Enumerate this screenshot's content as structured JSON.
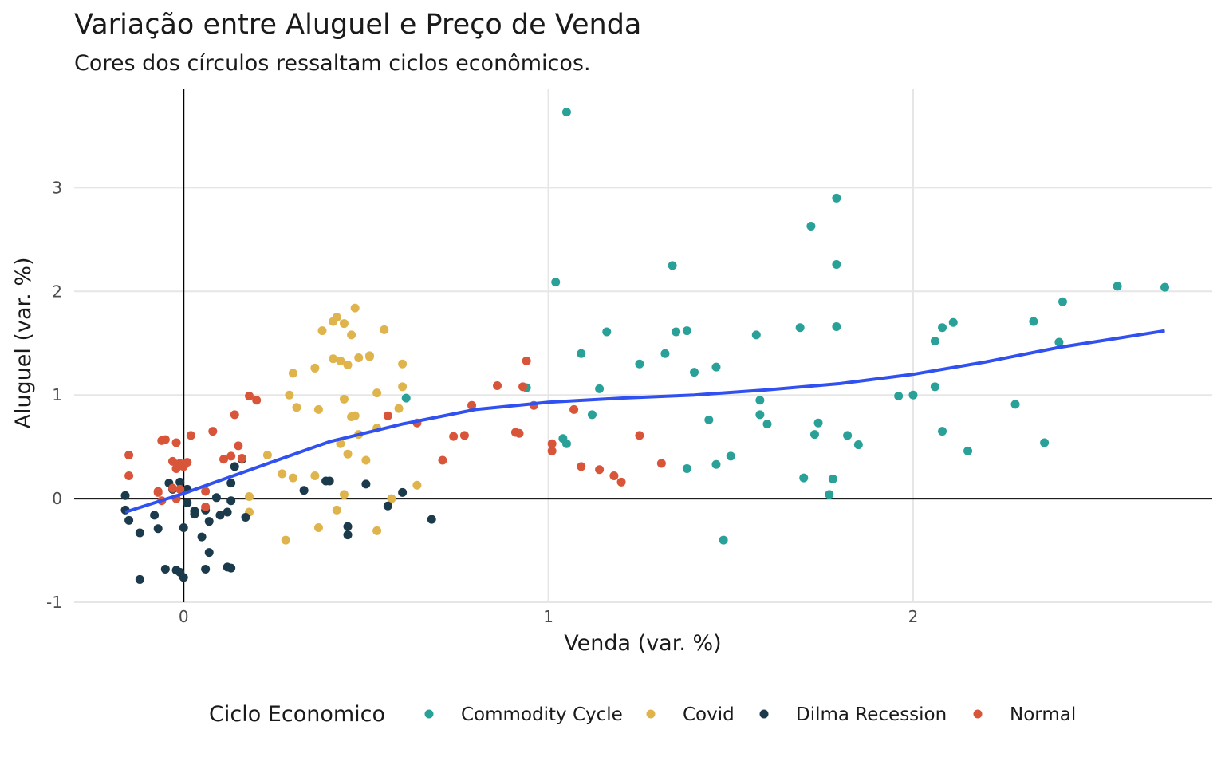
{
  "chart_data": {
    "type": "scatter",
    "title": "Variação entre Aluguel e Preço de Venda",
    "subtitle": "Cores dos círculos ressaltam ciclos econômicos.",
    "xlabel": "Venda (var. %)",
    "ylabel": "Aluguel (var. %)",
    "xlim": [
      -0.3,
      2.82
    ],
    "ylim": [
      -1.1,
      3.95
    ],
    "x_ticks": [
      0,
      1,
      2
    ],
    "y_ticks": [
      -1,
      0,
      1,
      2,
      3
    ],
    "grid": true,
    "legend_position": "bottom",
    "legend_title": "Ciclo Economico",
    "series": [
      {
        "name": "Commodity Cycle",
        "color": "#2aa198",
        "points": [
          [
            1.05,
            3.73
          ],
          [
            1.02,
            2.09
          ],
          [
            0.61,
            0.97
          ],
          [
            0.94,
            1.07
          ],
          [
            1.04,
            0.58
          ],
          [
            1.05,
            0.53
          ],
          [
            1.09,
            1.4
          ],
          [
            1.12,
            0.81
          ],
          [
            1.14,
            1.06
          ],
          [
            1.16,
            1.61
          ],
          [
            1.25,
            1.3
          ],
          [
            1.32,
            1.4
          ],
          [
            1.34,
            2.25
          ],
          [
            1.35,
            1.61
          ],
          [
            1.38,
            1.62
          ],
          [
            1.38,
            0.29
          ],
          [
            1.4,
            1.22
          ],
          [
            1.44,
            0.76
          ],
          [
            1.46,
            0.33
          ],
          [
            1.46,
            1.27
          ],
          [
            1.48,
            -0.4
          ],
          [
            1.5,
            0.41
          ],
          [
            1.57,
            1.58
          ],
          [
            1.58,
            0.95
          ],
          [
            1.58,
            0.81
          ],
          [
            1.6,
            0.72
          ],
          [
            1.69,
            1.65
          ],
          [
            1.7,
            0.2
          ],
          [
            1.72,
            2.63
          ],
          [
            1.73,
            0.62
          ],
          [
            1.74,
            0.73
          ],
          [
            1.77,
            0.04
          ],
          [
            1.78,
            0.19
          ],
          [
            1.79,
            2.9
          ],
          [
            1.79,
            2.26
          ],
          [
            1.79,
            1.66
          ],
          [
            1.82,
            0.61
          ],
          [
            1.85,
            0.52
          ],
          [
            1.96,
            0.99
          ],
          [
            2.0,
            1.0
          ],
          [
            2.06,
            1.52
          ],
          [
            2.06,
            1.08
          ],
          [
            2.08,
            1.65
          ],
          [
            2.08,
            0.65
          ],
          [
            2.11,
            1.7
          ],
          [
            2.15,
            0.46
          ],
          [
            2.28,
            0.91
          ],
          [
            2.33,
            1.71
          ],
          [
            2.4,
            1.51
          ],
          [
            2.41,
            1.9
          ],
          [
            2.36,
            0.54
          ],
          [
            2.56,
            2.05
          ],
          [
            2.69,
            2.04
          ]
        ]
      },
      {
        "name": "Covid",
        "color": "#e0b44c",
        "points": [
          [
            0.23,
            0.42
          ],
          [
            0.27,
            0.24
          ],
          [
            0.28,
            -0.4
          ],
          [
            0.29,
            1.0
          ],
          [
            0.3,
            1.21
          ],
          [
            0.3,
            0.2
          ],
          [
            0.31,
            0.88
          ],
          [
            0.36,
            0.22
          ],
          [
            0.36,
            1.26
          ],
          [
            0.37,
            -0.28
          ],
          [
            0.37,
            0.86
          ],
          [
            0.38,
            1.62
          ],
          [
            0.41,
            1.71
          ],
          [
            0.41,
            1.35
          ],
          [
            0.42,
            1.75
          ],
          [
            0.42,
            -0.11
          ],
          [
            0.43,
            0.53
          ],
          [
            0.43,
            1.33
          ],
          [
            0.44,
            1.69
          ],
          [
            0.44,
            0.96
          ],
          [
            0.44,
            0.04
          ],
          [
            0.45,
            1.29
          ],
          [
            0.45,
            0.43
          ],
          [
            0.46,
            1.58
          ],
          [
            0.46,
            0.79
          ],
          [
            0.47,
            1.84
          ],
          [
            0.47,
            0.8
          ],
          [
            0.48,
            0.62
          ],
          [
            0.48,
            1.36
          ],
          [
            0.5,
            0.37
          ],
          [
            0.51,
            1.38
          ],
          [
            0.51,
            1.37
          ],
          [
            0.53,
            1.02
          ],
          [
            0.53,
            0.68
          ],
          [
            0.53,
            -0.31
          ],
          [
            0.55,
            1.63
          ],
          [
            0.57,
            0.0
          ],
          [
            0.59,
            0.87
          ],
          [
            0.6,
            1.3
          ],
          [
            0.6,
            1.08
          ],
          [
            0.64,
            0.13
          ],
          [
            0.18,
            0.02
          ],
          [
            0.18,
            -0.13
          ]
        ]
      },
      {
        "name": "Dilma Recession",
        "color": "#1b3a4b",
        "points": [
          [
            -0.16,
            0.03
          ],
          [
            -0.16,
            -0.11
          ],
          [
            -0.15,
            -0.21
          ],
          [
            -0.12,
            -0.33
          ],
          [
            -0.12,
            -0.78
          ],
          [
            -0.08,
            -0.16
          ],
          [
            -0.07,
            -0.29
          ],
          [
            -0.05,
            -0.68
          ],
          [
            -0.04,
            0.15
          ],
          [
            -0.03,
            0.09
          ],
          [
            -0.02,
            -0.69
          ],
          [
            -0.01,
            -0.71
          ],
          [
            -0.01,
            0.16
          ],
          [
            0.0,
            -0.76
          ],
          [
            0.0,
            -0.28
          ],
          [
            0.01,
            -0.04
          ],
          [
            0.01,
            0.09
          ],
          [
            0.03,
            -0.12
          ],
          [
            0.03,
            -0.15
          ],
          [
            0.05,
            -0.37
          ],
          [
            0.06,
            -0.68
          ],
          [
            0.06,
            -0.11
          ],
          [
            0.07,
            -0.52
          ],
          [
            0.07,
            -0.22
          ],
          [
            0.09,
            0.01
          ],
          [
            0.1,
            -0.16
          ],
          [
            0.12,
            -0.66
          ],
          [
            0.12,
            -0.13
          ],
          [
            0.13,
            -0.67
          ],
          [
            0.13,
            -0.02
          ],
          [
            0.13,
            0.15
          ],
          [
            0.14,
            0.31
          ],
          [
            0.16,
            0.38
          ],
          [
            0.17,
            -0.18
          ],
          [
            0.33,
            0.08
          ],
          [
            0.39,
            0.17
          ],
          [
            0.4,
            0.17
          ],
          [
            0.45,
            -0.27
          ],
          [
            0.45,
            -0.35
          ],
          [
            0.5,
            0.14
          ],
          [
            0.56,
            -0.07
          ],
          [
            0.6,
            0.06
          ],
          [
            0.68,
            -0.2
          ]
        ]
      },
      {
        "name": "Normal",
        "color": "#d9553a",
        "points": [
          [
            -0.15,
            0.42
          ],
          [
            -0.15,
            0.22
          ],
          [
            -0.07,
            0.07
          ],
          [
            -0.06,
            0.56
          ],
          [
            -0.05,
            0.57
          ],
          [
            -0.03,
            0.36
          ],
          [
            -0.02,
            0.29
          ],
          [
            -0.02,
            0.54
          ],
          [
            -0.01,
            0.34
          ],
          [
            -0.01,
            0.09
          ],
          [
            0.0,
            0.31
          ],
          [
            0.01,
            0.35
          ],
          [
            0.02,
            0.61
          ],
          [
            -0.03,
            0.1
          ],
          [
            -0.02,
            0.0
          ],
          [
            -0.06,
            -0.02
          ],
          [
            -0.07,
            0.06
          ],
          [
            0.06,
            0.07
          ],
          [
            0.06,
            -0.08
          ],
          [
            0.08,
            0.65
          ],
          [
            0.11,
            0.38
          ],
          [
            0.13,
            0.41
          ],
          [
            0.14,
            0.81
          ],
          [
            0.15,
            0.51
          ],
          [
            0.16,
            0.39
          ],
          [
            0.18,
            0.99
          ],
          [
            0.2,
            0.95
          ],
          [
            0.56,
            0.8
          ],
          [
            0.64,
            0.73
          ],
          [
            0.71,
            0.37
          ],
          [
            0.74,
            0.6
          ],
          [
            0.77,
            0.61
          ],
          [
            0.79,
            0.9
          ],
          [
            0.86,
            1.09
          ],
          [
            0.91,
            0.64
          ],
          [
            0.92,
            0.63
          ],
          [
            0.93,
            1.08
          ],
          [
            0.94,
            1.33
          ],
          [
            0.96,
            0.9
          ],
          [
            1.01,
            0.46
          ],
          [
            1.01,
            0.53
          ],
          [
            1.07,
            0.86
          ],
          [
            1.09,
            0.31
          ],
          [
            1.14,
            0.28
          ],
          [
            1.18,
            0.22
          ],
          [
            1.2,
            0.16
          ],
          [
            1.25,
            0.61
          ],
          [
            1.31,
            0.34
          ]
        ]
      }
    ],
    "smooth_line": {
      "color": "#3050f0",
      "points": [
        [
          -0.16,
          -0.13
        ],
        [
          0.0,
          0.05
        ],
        [
          0.2,
          0.3
        ],
        [
          0.4,
          0.55
        ],
        [
          0.6,
          0.72
        ],
        [
          0.8,
          0.86
        ],
        [
          1.0,
          0.93
        ],
        [
          1.2,
          0.97
        ],
        [
          1.4,
          1.0
        ],
        [
          1.6,
          1.05
        ],
        [
          1.8,
          1.11
        ],
        [
          2.0,
          1.2
        ],
        [
          2.2,
          1.32
        ],
        [
          2.4,
          1.46
        ],
        [
          2.6,
          1.57
        ],
        [
          2.69,
          1.62
        ]
      ]
    }
  }
}
